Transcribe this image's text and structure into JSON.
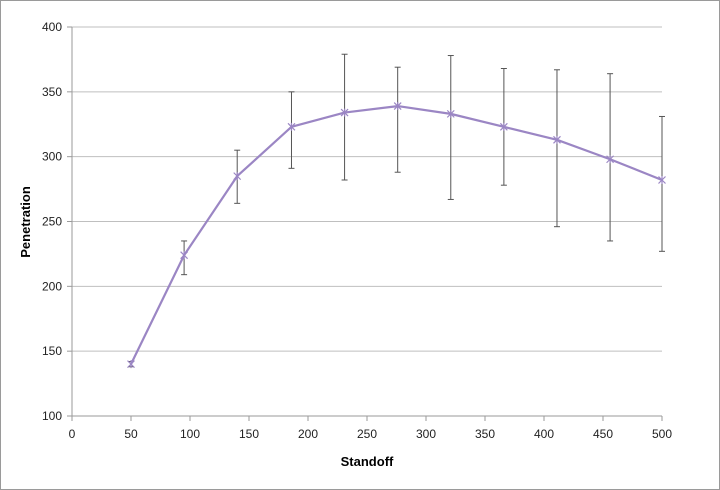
{
  "chart_data": {
    "type": "line",
    "title": "",
    "xlabel": "Standoff",
    "ylabel": "Penetration",
    "xlim": [
      0,
      500
    ],
    "ylim": [
      100,
      400
    ],
    "x_ticks": [
      0,
      50,
      100,
      150,
      200,
      250,
      300,
      350,
      400,
      450,
      500
    ],
    "y_ticks": [
      100,
      150,
      200,
      250,
      300,
      350,
      400
    ],
    "grid": {
      "horizontal": true,
      "vertical": false
    },
    "legend": "none",
    "series": [
      {
        "color": "#9b86c4",
        "marker": "asterisk",
        "x": [
          50,
          95,
          140,
          186,
          231,
          276,
          321,
          366,
          411,
          456,
          500
        ],
        "y": [
          140,
          224,
          285,
          323,
          334,
          339,
          333,
          323,
          313,
          298,
          282
        ],
        "error_low": [
          138,
          209,
          264,
          291,
          282,
          288,
          267,
          278,
          246,
          235,
          227
        ],
        "error_high": [
          142,
          235,
          305,
          350,
          379,
          369,
          378,
          368,
          367,
          364,
          331
        ]
      }
    ],
    "colors": {
      "gridline": "#bfbfbf",
      "axis": "#9a9a9a",
      "error_bar": "#555555"
    }
  }
}
